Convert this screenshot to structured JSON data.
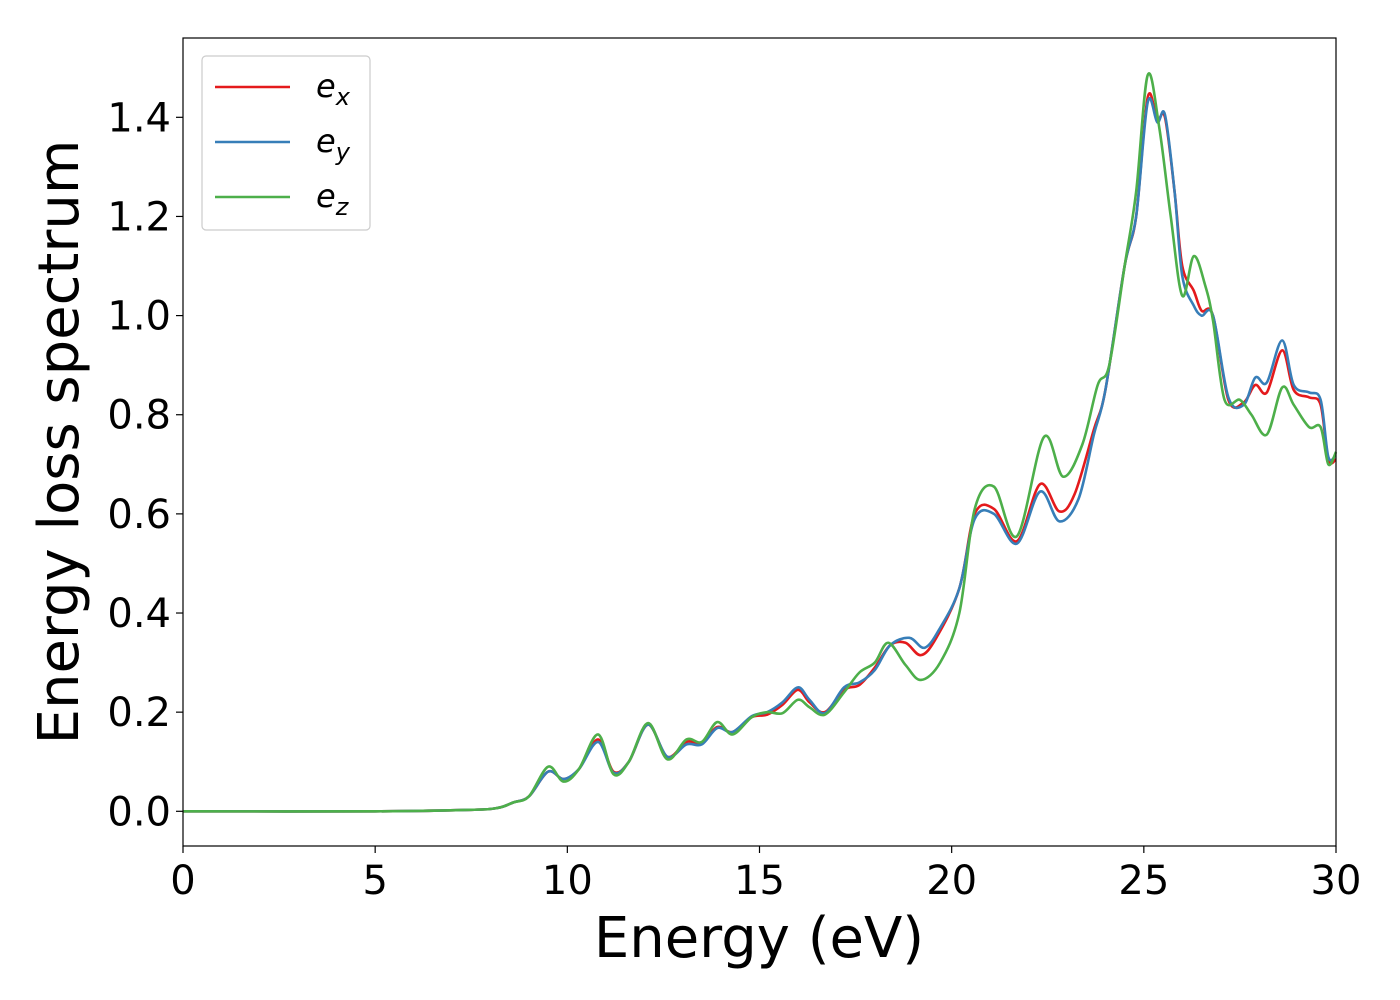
{
  "chart_data": {
    "type": "line",
    "title": "",
    "xlabel": "Energy (eV)",
    "ylabel": "Energy loss spectrum",
    "xlim": [
      0,
      30
    ],
    "ylim": [
      -0.07,
      1.56
    ],
    "xticks": [
      0,
      5,
      10,
      15,
      20,
      25,
      30
    ],
    "xtick_labels": [
      "0",
      "5",
      "10",
      "15",
      "20",
      "25",
      "30"
    ],
    "yticks": [
      0.0,
      0.2,
      0.4,
      0.6,
      0.8,
      1.0,
      1.2,
      1.4
    ],
    "ytick_labels": [
      "0.0",
      "0.2",
      "0.4",
      "0.6",
      "0.8",
      "1.0",
      "1.2",
      "1.4"
    ],
    "grid": false,
    "legend_position": "top-left",
    "series": [
      {
        "name": "e_x",
        "label_base": "e",
        "label_sub": "x",
        "color": "#e41a1c",
        "points": [
          [
            0,
            0
          ],
          [
            5,
            0
          ],
          [
            7.5,
            0.003
          ],
          [
            8.2,
            0.007
          ],
          [
            8.6,
            0.018
          ],
          [
            9,
            0.03
          ],
          [
            9.5,
            0.08
          ],
          [
            9.9,
            0.065
          ],
          [
            10.3,
            0.085
          ],
          [
            10.8,
            0.145
          ],
          [
            11.2,
            0.08
          ],
          [
            11.6,
            0.1
          ],
          [
            12.1,
            0.175
          ],
          [
            12.6,
            0.11
          ],
          [
            13.1,
            0.14
          ],
          [
            13.5,
            0.138
          ],
          [
            13.9,
            0.17
          ],
          [
            14.3,
            0.16
          ],
          [
            14.8,
            0.19
          ],
          [
            15.2,
            0.195
          ],
          [
            15.6,
            0.215
          ],
          [
            16,
            0.245
          ],
          [
            16.3,
            0.22
          ],
          [
            16.7,
            0.2
          ],
          [
            17.2,
            0.245
          ],
          [
            17.6,
            0.255
          ],
          [
            18,
            0.29
          ],
          [
            18.4,
            0.335
          ],
          [
            18.8,
            0.34
          ],
          [
            19.2,
            0.315
          ],
          [
            19.6,
            0.35
          ],
          [
            20.2,
            0.45
          ],
          [
            20.6,
            0.6
          ],
          [
            21.1,
            0.61
          ],
          [
            21.7,
            0.545
          ],
          [
            22.3,
            0.66
          ],
          [
            22.8,
            0.605
          ],
          [
            23.2,
            0.64
          ],
          [
            23.7,
            0.77
          ],
          [
            24,
            0.85
          ],
          [
            24.5,
            1.1
          ],
          [
            24.8,
            1.2
          ],
          [
            25.1,
            1.44
          ],
          [
            25.35,
            1.395
          ],
          [
            25.55,
            1.4
          ],
          [
            25.8,
            1.25
          ],
          [
            26,
            1.1
          ],
          [
            26.3,
            1.05
          ],
          [
            26.5,
            1.01
          ],
          [
            26.8,
            1.0
          ],
          [
            27.2,
            0.83
          ],
          [
            27.6,
            0.825
          ],
          [
            27.9,
            0.86
          ],
          [
            28.2,
            0.845
          ],
          [
            28.6,
            0.93
          ],
          [
            28.9,
            0.85
          ],
          [
            29.3,
            0.835
          ],
          [
            29.6,
            0.82
          ],
          [
            29.8,
            0.71
          ],
          [
            30,
            0.71
          ]
        ]
      },
      {
        "name": "e_y",
        "label_base": "e",
        "label_sub": "y",
        "color": "#377eb8",
        "points": [
          [
            0,
            0
          ],
          [
            5,
            0
          ],
          [
            7.5,
            0.003
          ],
          [
            8.2,
            0.007
          ],
          [
            8.6,
            0.018
          ],
          [
            9,
            0.03
          ],
          [
            9.5,
            0.08
          ],
          [
            9.9,
            0.065
          ],
          [
            10.3,
            0.085
          ],
          [
            10.8,
            0.14
          ],
          [
            11.2,
            0.078
          ],
          [
            11.6,
            0.1
          ],
          [
            12.1,
            0.175
          ],
          [
            12.6,
            0.11
          ],
          [
            13.1,
            0.135
          ],
          [
            13.5,
            0.135
          ],
          [
            13.9,
            0.168
          ],
          [
            14.3,
            0.16
          ],
          [
            14.8,
            0.192
          ],
          [
            15.2,
            0.2
          ],
          [
            15.6,
            0.22
          ],
          [
            16,
            0.25
          ],
          [
            16.3,
            0.225
          ],
          [
            16.7,
            0.198
          ],
          [
            17.2,
            0.25
          ],
          [
            17.6,
            0.26
          ],
          [
            18,
            0.285
          ],
          [
            18.4,
            0.335
          ],
          [
            18.9,
            0.35
          ],
          [
            19.3,
            0.33
          ],
          [
            19.7,
            0.37
          ],
          [
            20.2,
            0.45
          ],
          [
            20.6,
            0.59
          ],
          [
            21.1,
            0.6
          ],
          [
            21.7,
            0.54
          ],
          [
            22.3,
            0.645
          ],
          [
            22.8,
            0.585
          ],
          [
            23.3,
            0.63
          ],
          [
            23.7,
            0.76
          ],
          [
            24,
            0.85
          ],
          [
            24.5,
            1.1
          ],
          [
            24.8,
            1.2
          ],
          [
            25.1,
            1.43
          ],
          [
            25.35,
            1.39
          ],
          [
            25.55,
            1.405
          ],
          [
            25.8,
            1.25
          ],
          [
            26,
            1.08
          ],
          [
            26.3,
            1.02
          ],
          [
            26.5,
            1.0
          ],
          [
            26.8,
            1.0
          ],
          [
            27.2,
            0.835
          ],
          [
            27.6,
            0.82
          ],
          [
            27.9,
            0.875
          ],
          [
            28.2,
            0.865
          ],
          [
            28.6,
            0.95
          ],
          [
            28.9,
            0.86
          ],
          [
            29.3,
            0.845
          ],
          [
            29.6,
            0.83
          ],
          [
            29.8,
            0.715
          ],
          [
            30,
            0.72
          ]
        ]
      },
      {
        "name": "e_z",
        "label_base": "e",
        "label_sub": "z",
        "color": "#4daf4a",
        "points": [
          [
            0,
            0
          ],
          [
            5,
            0
          ],
          [
            7.5,
            0.003
          ],
          [
            8.2,
            0.007
          ],
          [
            8.6,
            0.018
          ],
          [
            9,
            0.03
          ],
          [
            9.5,
            0.09
          ],
          [
            9.9,
            0.06
          ],
          [
            10.3,
            0.085
          ],
          [
            10.8,
            0.155
          ],
          [
            11.2,
            0.075
          ],
          [
            11.6,
            0.1
          ],
          [
            12.1,
            0.178
          ],
          [
            12.6,
            0.105
          ],
          [
            13.1,
            0.145
          ],
          [
            13.5,
            0.14
          ],
          [
            13.9,
            0.18
          ],
          [
            14.3,
            0.155
          ],
          [
            14.8,
            0.19
          ],
          [
            15.2,
            0.2
          ],
          [
            15.6,
            0.198
          ],
          [
            16,
            0.225
          ],
          [
            16.3,
            0.21
          ],
          [
            16.7,
            0.195
          ],
          [
            17.2,
            0.24
          ],
          [
            17.6,
            0.28
          ],
          [
            18,
            0.3
          ],
          [
            18.35,
            0.34
          ],
          [
            18.8,
            0.295
          ],
          [
            19.2,
            0.265
          ],
          [
            19.7,
            0.3
          ],
          [
            20.2,
            0.4
          ],
          [
            20.6,
            0.61
          ],
          [
            21.1,
            0.655
          ],
          [
            21.7,
            0.555
          ],
          [
            22.4,
            0.755
          ],
          [
            22.9,
            0.675
          ],
          [
            23.4,
            0.74
          ],
          [
            23.8,
            0.86
          ],
          [
            24.1,
            0.9
          ],
          [
            24.5,
            1.1
          ],
          [
            24.8,
            1.25
          ],
          [
            25.1,
            1.485
          ],
          [
            25.4,
            1.38
          ],
          [
            25.7,
            1.2
          ],
          [
            26,
            1.04
          ],
          [
            26.3,
            1.12
          ],
          [
            26.6,
            1.06
          ],
          [
            26.8,
            0.99
          ],
          [
            27.1,
            0.83
          ],
          [
            27.5,
            0.83
          ],
          [
            27.8,
            0.8
          ],
          [
            28.2,
            0.76
          ],
          [
            28.6,
            0.855
          ],
          [
            28.9,
            0.82
          ],
          [
            29.3,
            0.775
          ],
          [
            29.6,
            0.775
          ],
          [
            29.8,
            0.7
          ],
          [
            30,
            0.725
          ]
        ]
      }
    ]
  }
}
